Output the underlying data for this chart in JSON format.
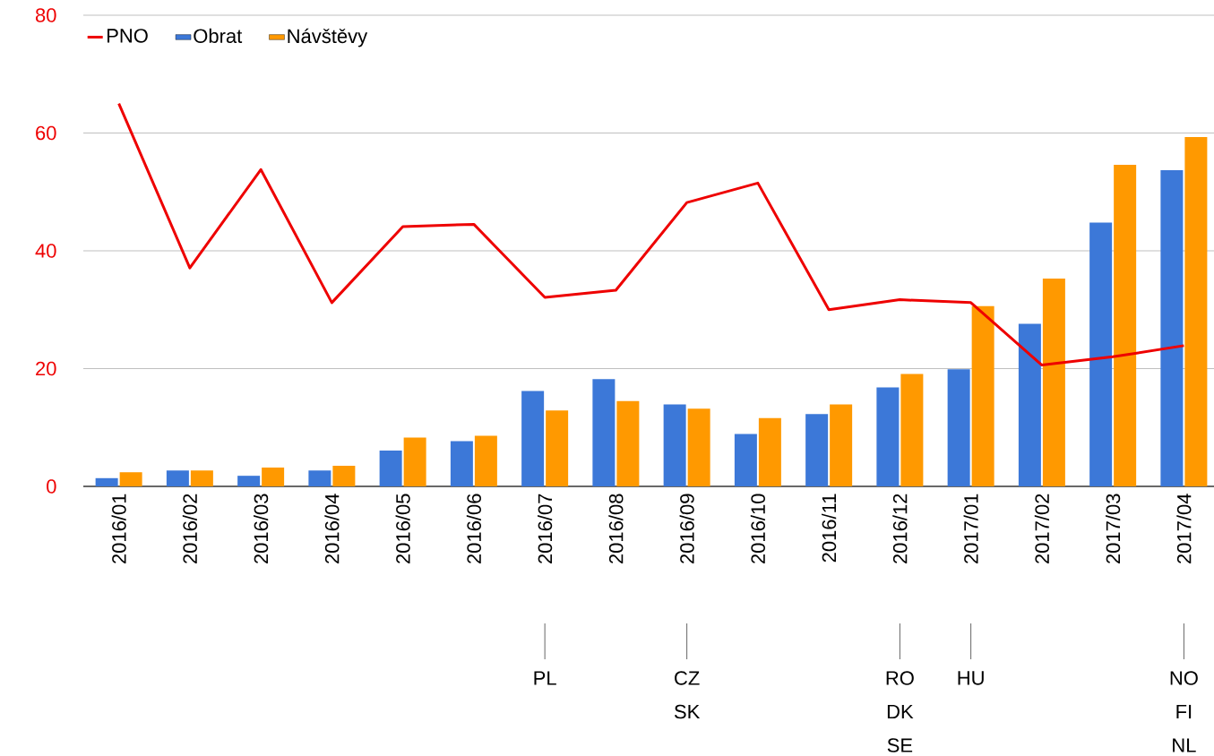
{
  "chart_data": {
    "type": "bar",
    "categories": [
      "2016/01",
      "2016/02",
      "2016/03",
      "2016/04",
      "2016/05",
      "2016/06",
      "2016/07",
      "2016/08",
      "2016/09",
      "2016/10",
      "2016/11",
      "2016/12",
      "2017/01",
      "2017/02",
      "2017/03",
      "2017/04"
    ],
    "series": [
      {
        "name": "PNO",
        "type": "line",
        "color": "#ee0000",
        "values": [
          65,
          37.1,
          53.8,
          31.2,
          44.1,
          44.5,
          32.1,
          33.3,
          48.2,
          51.5,
          30,
          31.7,
          31.2,
          20.6,
          22,
          23.9
        ]
      },
      {
        "name": "Obrat",
        "color": "#3c78d8",
        "values": [
          1.4,
          2.7,
          1.8,
          2.7,
          6.1,
          7.7,
          16.2,
          18.2,
          13.9,
          8.9,
          12.3,
          16.8,
          19.9,
          27.6,
          44.8,
          53.7
        ]
      },
      {
        "name": "Návštěvy",
        "color": "#ff9900",
        "values": [
          2.4,
          2.7,
          3.2,
          3.5,
          8.3,
          8.6,
          12.9,
          14.5,
          13.2,
          11.6,
          13.9,
          19.1,
          30.6,
          35.3,
          54.6,
          59.3
        ]
      }
    ],
    "ylim": [
      0,
      80
    ],
    "yticks": [
      0,
      20,
      40,
      60,
      80
    ],
    "grid": "y",
    "legend": "top left",
    "annotations": [
      "PL",
      "CZ",
      "SK",
      "RO",
      "DK",
      "SE",
      "HU",
      "NO",
      "FI",
      "NL"
    ]
  }
}
